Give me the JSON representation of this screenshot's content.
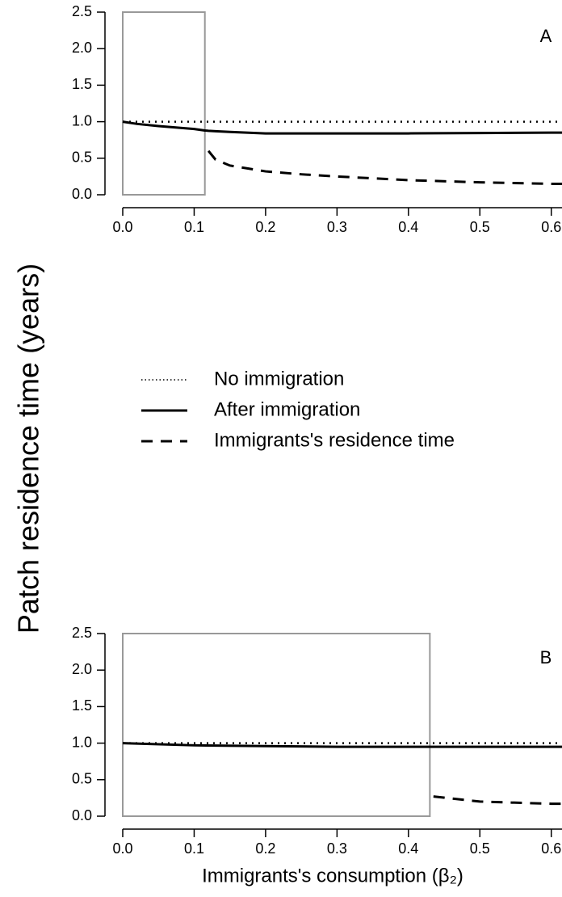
{
  "chart_data": [
    {
      "type": "line",
      "annotation": "A",
      "ylabel": "Patch residence time (years)",
      "x": [
        0,
        0.02,
        0.05,
        0.1,
        0.115,
        0.12,
        0.13,
        0.15,
        0.2,
        0.25,
        0.3,
        0.4,
        0.5,
        0.6,
        0.615
      ],
      "series": [
        {
          "name": "No immigration",
          "color": "#000000",
          "dash": "dotted",
          "values": [
            1,
            1,
            1,
            1,
            1,
            1,
            1,
            1,
            1,
            1,
            1,
            1,
            1,
            1,
            1
          ]
        },
        {
          "name": "After immigration",
          "color": "#000000",
          "dash": "solid",
          "values": [
            1,
            0.97,
            0.94,
            0.9,
            0.88,
            0.875,
            0.87,
            0.86,
            0.84,
            0.84,
            0.84,
            0.84,
            0.845,
            0.85,
            0.85
          ]
        },
        {
          "name": "Immigrants's residence time",
          "color": "#000000",
          "dash": "dashed",
          "values": [
            null,
            null,
            null,
            null,
            null,
            0.6,
            0.48,
            0.4,
            0.32,
            0.28,
            0.25,
            0.2,
            0.17,
            0.15,
            0.15
          ]
        }
      ],
      "region": {
        "x": [
          0,
          0.115
        ],
        "y": [
          0,
          2.5
        ],
        "color": "#999999"
      },
      "xlim": [
        0,
        0.615
      ],
      "ylim": [
        0,
        2.5
      ],
      "xticks": [
        {
          "value": 0,
          "label": "0.0"
        },
        0.1,
        0.2,
        0.3,
        0.4,
        0.5,
        0.6
      ],
      "yticks": [
        {
          "value": 0,
          "label": "0.0"
        },
        0.5,
        {
          "value": 1,
          "label": "1.0"
        },
        1.5,
        {
          "value": 2,
          "label": "2.0"
        },
        2.5
      ]
    },
    {
      "type": "line",
      "annotation": "B",
      "xlabel": "Immigrants's consumption (β₂)",
      "x": [
        0,
        0.1,
        0.2,
        0.3,
        0.4,
        0.43,
        0.435,
        0.5,
        0.6,
        0.615
      ],
      "series": [
        {
          "color": "#000000",
          "dash": "dotted",
          "values": [
            1,
            1,
            1,
            1,
            1,
            1,
            1,
            1,
            1,
            1
          ]
        },
        {
          "color": "#000000",
          "dash": "solid",
          "values": [
            1,
            0.97,
            0.96,
            0.95,
            0.95,
            0.95,
            0.95,
            0.95,
            0.95,
            0.95
          ]
        },
        {
          "color": "#000000",
          "dash": "dashed",
          "values": [
            null,
            null,
            null,
            null,
            null,
            null,
            0.27,
            0.2,
            0.17,
            0.17
          ]
        }
      ],
      "region": {
        "x": [
          0,
          0.43
        ],
        "y": [
          0,
          2.5
        ],
        "color": "#999999"
      },
      "xlim": [
        0,
        0.615
      ],
      "ylim": [
        0,
        2.5
      ],
      "xticks": [
        {
          "value": 0,
          "label": "0.0"
        },
        0.1,
        0.2,
        0.3,
        0.4,
        0.5,
        0.6
      ],
      "yticks": [
        {
          "value": 0,
          "label": "0.0"
        },
        0.5,
        {
          "value": 1,
          "label": "1.0"
        },
        1.5,
        {
          "value": 2,
          "label": "2.0"
        },
        2.5
      ]
    }
  ]
}
